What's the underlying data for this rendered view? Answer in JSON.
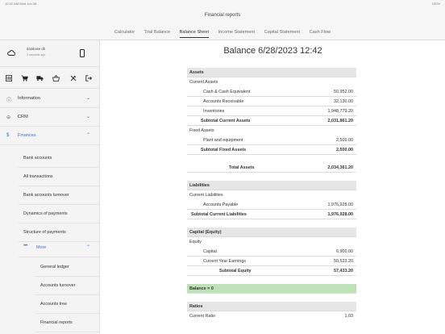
{
  "statusbar": {
    "left": "10:42 AM   Wed Jun 28",
    "right": "100%"
  },
  "header": {
    "title": "Financial reports",
    "tabs": [
      "Calculator",
      "Trial Balance",
      "Balance Sheet",
      "Income Statement",
      "Capital Statement",
      "Cash Flow"
    ],
    "active_tab": "Balance Sheet"
  },
  "sidebar": {
    "account": {
      "name": "database db",
      "subtitle": "3 seconds ago"
    },
    "toolbar_icons": [
      "barcode-icon",
      "cart-icon",
      "truck-icon",
      "basket-icon",
      "tools-icon",
      "logout-icon"
    ],
    "nav": [
      {
        "label": "Information",
        "icon": "info-icon"
      },
      {
        "label": "CRM",
        "icon": "crm-icon"
      },
      {
        "label": "Finances",
        "icon": "dollar-icon"
      }
    ],
    "finance_items": [
      "Bank accounts",
      "All transactions",
      "Bank accounts turnover",
      "Dynamics of payments",
      "Structure of payments"
    ],
    "group": "More",
    "group_items": [
      "General ledger",
      "Accounts turnover",
      "Accounts tree",
      "Financial reports"
    ]
  },
  "report": {
    "title": "Balance  6/28/2023 12:42",
    "assets": {
      "heading": "Assets",
      "current_label": "Current Assets",
      "current": [
        {
          "label": "Cash & Cash Equivalent",
          "value": "50,952.00"
        },
        {
          "label": "Accounts Receivable",
          "value": "32,130.00"
        },
        {
          "label": "Inventories",
          "value": "1,948,779.20"
        }
      ],
      "subtotal_current": {
        "label": "Subtotal Current Assets",
        "value": "2,031,861.20"
      },
      "fixed_label": "Fixed Assets",
      "fixed": [
        {
          "label": "Plant and equipment",
          "value": "2,500.00"
        }
      ],
      "subtotal_fixed": {
        "label": "Subtotal Fixed Assets",
        "value": "2,500.00"
      },
      "total": {
        "label": "Total Assets",
        "value": "2,034,361.20"
      }
    },
    "liabilities": {
      "heading": "Liabilities",
      "current_label": "Current Liabilities",
      "current": [
        {
          "label": "Accounts Payable",
          "value": "1,976,928.00"
        }
      ],
      "subtotal": {
        "label": "Subtotal Current Liabilities",
        "value": "1,976,928.00"
      }
    },
    "equity": {
      "heading": "Capital (Equity)",
      "label": "Equity",
      "items": [
        {
          "label": "Capital",
          "value": "6,900.00"
        },
        {
          "label": "Current Year Earnings",
          "value": "50,533.20"
        }
      ],
      "subtotal": {
        "label": "Subtotal Equity",
        "value": "57,433.20"
      }
    },
    "balance": "Balance = 0",
    "ratios": {
      "heading": "Ratios",
      "items": [
        {
          "label": "Current Ratio",
          "value": "1.03"
        }
      ]
    }
  },
  "colors": {
    "accent": "#4a72c4",
    "balance_ok": "#bfe1b8",
    "section_header": "#e6e6e6"
  }
}
